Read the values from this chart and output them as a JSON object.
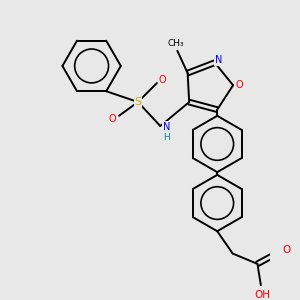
{
  "bg_color": "#e8e8e8",
  "line_color": "#000000",
  "bond_lw": 1.4,
  "atom_colors": {
    "O": "#ff0000",
    "N": "#0000ff",
    "S": "#ccaa00",
    "H": "#008b8b",
    "C": "#000000"
  },
  "figsize": [
    3.0,
    3.0
  ],
  "dpi": 100
}
